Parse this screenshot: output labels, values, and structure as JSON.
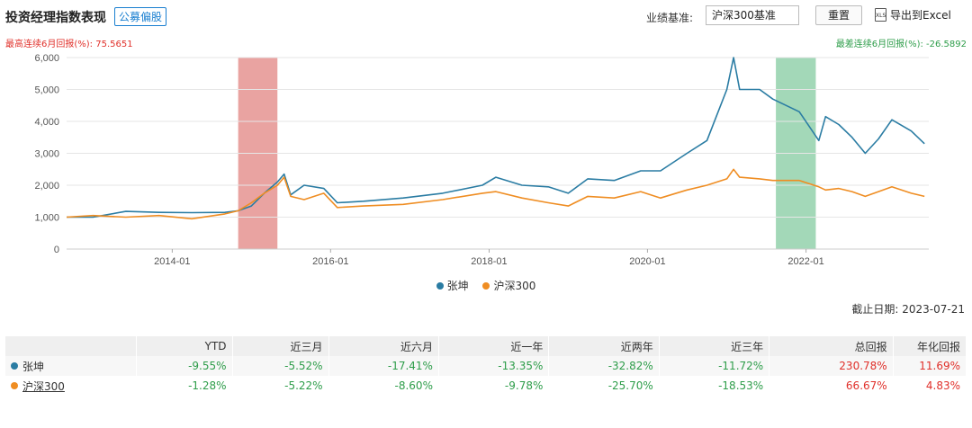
{
  "header": {
    "title": "投资经理指数表现",
    "tag": "公募偏股",
    "benchmark_label": "业绩基准:",
    "benchmark_value": "沪深300基准",
    "reset_label": "重置",
    "export_label": "导出到Excel",
    "export_icon": "xls-file-icon"
  },
  "stats": {
    "max_label": "最高连续6月回报(%): 75.5651",
    "min_label": "最差连续6月回报(%): -26.5892"
  },
  "colors": {
    "manager": "#2a7ca3",
    "benchmark": "#ef8d22",
    "max_band": "#e07c79",
    "min_band": "#7cc79a",
    "positive": "#e0302a",
    "negative": "#2e9d4a"
  },
  "chart_data": {
    "type": "line",
    "y_ticks": [
      "0",
      "1,000",
      "2,000",
      "3,000",
      "4,000",
      "5,000",
      "6,000"
    ],
    "ylim": [
      0,
      6000
    ],
    "xlim": [
      "2012-09-01",
      "2023-07-21"
    ],
    "x_ticks": [
      "2014-01",
      "2016-01",
      "2018-01",
      "2020-01",
      "2022-01"
    ],
    "grid": true,
    "legend_position": "bottom",
    "highlight_bands": [
      {
        "kind": "max",
        "start": "2014-11-01",
        "end": "2015-05-01"
      },
      {
        "kind": "min",
        "start": "2021-08-15",
        "end": "2022-02-15"
      }
    ],
    "series": [
      {
        "name": "张坤",
        "x": [
          "2012-09",
          "2013-01",
          "2013-06",
          "2013-11",
          "2014-04",
          "2014-09",
          "2014-11",
          "2015-01",
          "2015-03",
          "2015-05",
          "2015-06",
          "2015-07",
          "2015-09",
          "2015-12",
          "2016-02",
          "2016-06",
          "2016-12",
          "2017-06",
          "2017-12",
          "2018-02",
          "2018-06",
          "2018-10",
          "2019-01",
          "2019-04",
          "2019-08",
          "2019-12",
          "2020-03",
          "2020-07",
          "2020-10",
          "2021-01",
          "2021-02",
          "2021-03",
          "2021-06",
          "2021-08",
          "2021-12",
          "2022-03",
          "2022-04",
          "2022-06",
          "2022-08",
          "2022-10",
          "2022-12",
          "2023-02",
          "2023-05",
          "2023-07"
        ],
        "y": [
          1000,
          1000,
          1180,
          1150,
          1140,
          1150,
          1200,
          1350,
          1750,
          2100,
          2350,
          1700,
          2000,
          1900,
          1450,
          1500,
          1600,
          1750,
          2000,
          2250,
          2000,
          1950,
          1750,
          2200,
          2150,
          2450,
          2450,
          3000,
          3400,
          5000,
          6000,
          5000,
          5000,
          4700,
          4300,
          3400,
          4150,
          3900,
          3500,
          3000,
          3450,
          4050,
          3700,
          3300
        ]
      },
      {
        "name": "沪深300",
        "x": [
          "2012-09",
          "2013-01",
          "2013-06",
          "2013-11",
          "2014-04",
          "2014-09",
          "2014-11",
          "2015-01",
          "2015-03",
          "2015-05",
          "2015-06",
          "2015-07",
          "2015-09",
          "2015-12",
          "2016-02",
          "2016-06",
          "2016-12",
          "2017-06",
          "2017-12",
          "2018-02",
          "2018-06",
          "2018-10",
          "2019-01",
          "2019-04",
          "2019-08",
          "2019-12",
          "2020-03",
          "2020-07",
          "2020-10",
          "2021-01",
          "2021-02",
          "2021-03",
          "2021-06",
          "2021-08",
          "2021-12",
          "2022-03",
          "2022-04",
          "2022-06",
          "2022-08",
          "2022-10",
          "2022-12",
          "2023-02",
          "2023-05",
          "2023-07"
        ],
        "y": [
          1000,
          1050,
          1000,
          1050,
          950,
          1100,
          1200,
          1450,
          1750,
          2000,
          2250,
          1650,
          1550,
          1750,
          1300,
          1350,
          1400,
          1550,
          1750,
          1800,
          1600,
          1450,
          1350,
          1650,
          1600,
          1800,
          1600,
          1850,
          2000,
          2200,
          2500,
          2250,
          2200,
          2150,
          2150,
          1950,
          1850,
          1900,
          1800,
          1650,
          1800,
          1950,
          1750,
          1650
        ]
      }
    ]
  },
  "asof": "截止日期:  2023-07-21",
  "table": {
    "columns": [
      "",
      "YTD",
      "近三月",
      "近六月",
      "近一年",
      "近两年",
      "近三年",
      "总回报",
      "年化回报"
    ],
    "rows": [
      {
        "name": "张坤",
        "cells": [
          "-9.55%",
          "-5.52%",
          "-17.41%",
          "-13.35%",
          "-32.82%",
          "-11.72%",
          "230.78%",
          "11.69%"
        ]
      },
      {
        "name": "沪深300",
        "cells": [
          "-1.28%",
          "-5.22%",
          "-8.60%",
          "-9.78%",
          "-25.70%",
          "-18.53%",
          "66.67%",
          "4.83%"
        ]
      }
    ]
  }
}
